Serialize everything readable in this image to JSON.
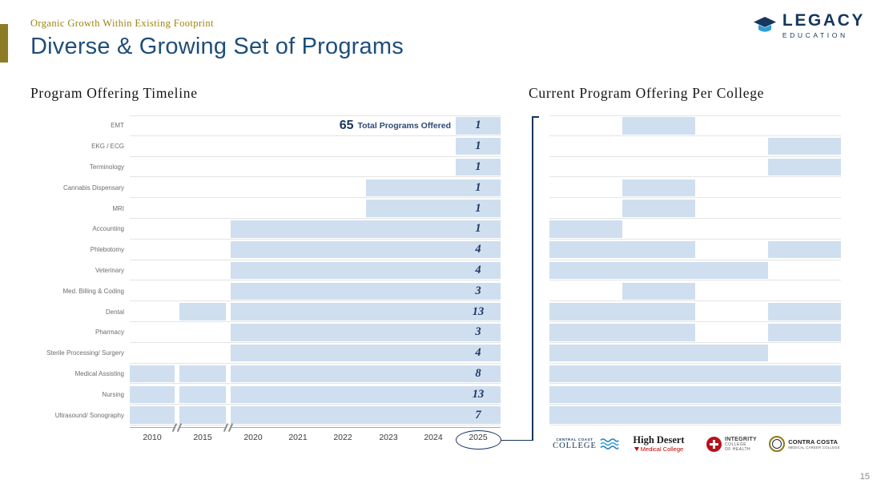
{
  "header": {
    "eyebrow": "Organic Growth Within Existing Footprint",
    "title": "Diverse & Growing Set of Programs",
    "logo": {
      "name": "LEGACY",
      "sub": "EDUCATION"
    }
  },
  "footer": {
    "page_number": "15"
  },
  "colors": {
    "accent_gold": "#8e7b25",
    "eyebrow_gold": "#9c8412",
    "title_blue": "#1f4e79",
    "navy": "#17365d",
    "bar_blue": "#cfdfef",
    "high_desert_red": "#c00000",
    "integrity_red": "#b5121b",
    "contra_costa_gold": "#96771e"
  },
  "colleges": [
    {
      "name": "Central Coast College",
      "logo_line1": "CENTRAL COAST",
      "logo_line2": "COLLEGE"
    },
    {
      "name": "High Desert Medical College",
      "logo_line1": "High Desert",
      "logo_line2": "Medical College"
    },
    {
      "name": "Integrity College of Health",
      "logo_line1": "INTEGRITY",
      "logo_line2": "COLLEGE",
      "logo_line3": "OF HEALTH"
    },
    {
      "name": "Contra Costa Medical Career College",
      "logo_line1": "CONTRA COSTA",
      "logo_line2": "MEDICAL CAREER COLLEGE"
    }
  ],
  "chart_data": [
    {
      "type": "bar",
      "subtype": "timeline-gantt",
      "title": "Program Offering Timeline",
      "annotation_value": "65",
      "annotation_label": "Total Programs Offered",
      "total_programs": 65,
      "x_ticks": [
        "2010",
        "2015",
        "2020",
        "2021",
        "2022",
        "2023",
        "2024",
        "2025"
      ],
      "axis_breaks": [
        "2010-2015",
        "2015-2020"
      ],
      "highlighted_tick": "2025",
      "rows": [
        {
          "program": "EMT",
          "start": "2025",
          "count": 1
        },
        {
          "program": "EKG / ECG",
          "start": "2025",
          "count": 1
        },
        {
          "program": "Terminology",
          "start": "2025",
          "count": 1
        },
        {
          "program": "Cannabis Dispensary",
          "start": "2023",
          "count": 1
        },
        {
          "program": "MRI",
          "start": "2023",
          "count": 1
        },
        {
          "program": "Accounting",
          "start": "2020",
          "count": 1
        },
        {
          "program": "Phlebotomy",
          "start": "2020",
          "count": 4
        },
        {
          "program": "Veterinary",
          "start": "2020",
          "count": 4
        },
        {
          "program": "Med. Billing & Coding",
          "start": "2020",
          "count": 3
        },
        {
          "program": "Dental",
          "start": "2015",
          "count": 13
        },
        {
          "program": "Pharmacy",
          "start": "2020",
          "count": 3
        },
        {
          "program": "Sterile Processing/ Surgery",
          "start": "2020",
          "count": 4
        },
        {
          "program": "Medical Assisting",
          "start": "2010",
          "count": 8
        },
        {
          "program": "Nursing",
          "start": "2010",
          "count": 13
        },
        {
          "program": "Ultrasound/ Sonography",
          "start": "2010",
          "count": 7
        }
      ]
    },
    {
      "type": "heatmap",
      "title": "Current Program Offering Per College",
      "columns": [
        "Central Coast College",
        "High Desert Medical College",
        "Integrity College of Health",
        "Contra Costa Medical Career College"
      ],
      "rows": [
        {
          "program": "EMT",
          "offered": [
            0,
            1,
            0,
            0
          ]
        },
        {
          "program": "EKG / ECG",
          "offered": [
            0,
            0,
            0,
            1
          ]
        },
        {
          "program": "Terminology",
          "offered": [
            0,
            0,
            0,
            1
          ]
        },
        {
          "program": "Cannabis Dispensary",
          "offered": [
            0,
            1,
            0,
            0
          ]
        },
        {
          "program": "MRI",
          "offered": [
            0,
            1,
            0,
            0
          ]
        },
        {
          "program": "Accounting",
          "offered": [
            1,
            0,
            0,
            0
          ]
        },
        {
          "program": "Phlebotomy",
          "offered": [
            1,
            1,
            0,
            1
          ]
        },
        {
          "program": "Veterinary",
          "offered": [
            1,
            1,
            1,
            0
          ]
        },
        {
          "program": "Med. Billing & Coding",
          "offered": [
            0,
            1,
            0,
            0
          ]
        },
        {
          "program": "Dental",
          "offered": [
            1,
            1,
            0,
            1
          ]
        },
        {
          "program": "Pharmacy",
          "offered": [
            1,
            1,
            0,
            1
          ]
        },
        {
          "program": "Sterile Processing/ Surgery",
          "offered": [
            1,
            1,
            1,
            0
          ]
        },
        {
          "program": "Medical Assisting",
          "offered": [
            1,
            1,
            1,
            1
          ]
        },
        {
          "program": "Nursing",
          "offered": [
            1,
            1,
            1,
            1
          ]
        },
        {
          "program": "Ultrasound/ Sonography",
          "offered": [
            1,
            1,
            1,
            1
          ]
        }
      ]
    }
  ]
}
